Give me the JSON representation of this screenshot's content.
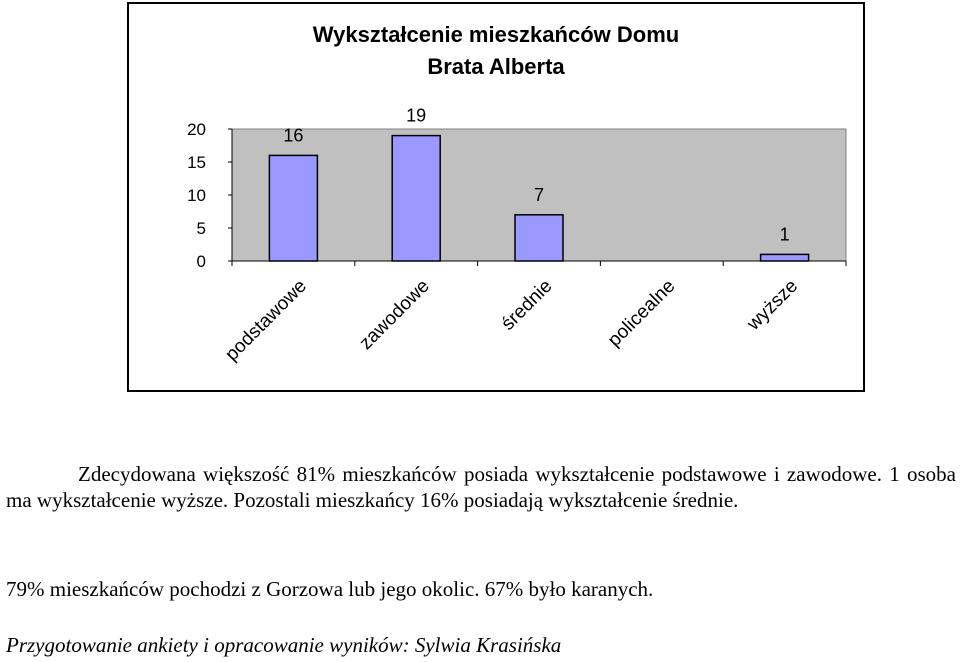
{
  "chart_data": {
    "type": "bar",
    "title_lines": [
      "Wykształcenie mieszkańców Domu",
      "Brata Alberta"
    ],
    "categories": [
      "podstawowe",
      "zawodowe",
      "średnie",
      "policealne",
      "wyższe"
    ],
    "values": [
      16,
      19,
      7,
      null,
      1
    ],
    "data_labels": [
      "16",
      "19",
      "7",
      "",
      "1"
    ],
    "y_ticks": [
      "20",
      "15",
      "10",
      "5",
      "0"
    ],
    "ylim": [
      0,
      20
    ],
    "grid": false,
    "legend": "none",
    "colors": {
      "bar": "#9999ff",
      "plot_area": "#c0c0c0",
      "axis": "#000000"
    }
  },
  "text": {
    "paragraph1": "Zdecydowana większość 81% mieszkańców posiada wykształcenie podstawowe i zawodowe. 1 osoba ma wykształcenie wyższe. Pozostali mieszkańcy 16% posiadają wykształcenie średnie.",
    "paragraph2": "79% mieszkańców pochodzi z Gorzowa lub jego okolic. 67% było karanych.",
    "credit": "Przygotowanie ankiety i opracowanie wyników: Sylwia Krasińska"
  }
}
